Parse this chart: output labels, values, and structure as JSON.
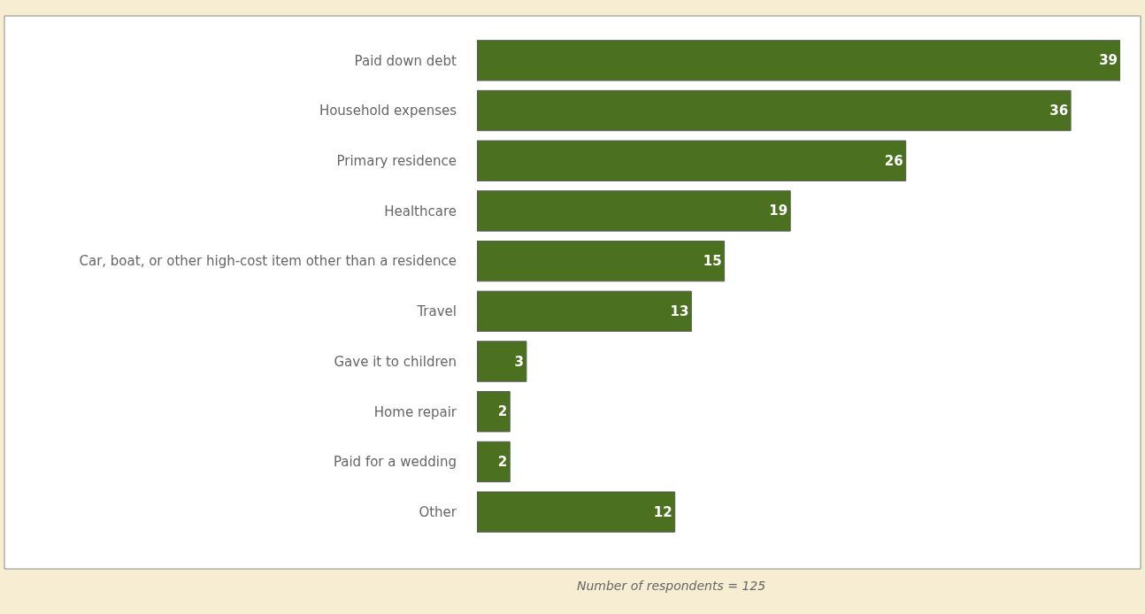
{
  "chart_data": {
    "type": "bar",
    "orientation": "horizontal",
    "categories": [
      "Paid down debt",
      "Household expenses",
      "Primary residence",
      "Healthcare",
      "Car, boat, or other high-cost item other than a residence",
      "Travel",
      "Gave it to children",
      "Home repair",
      "Paid for a wedding",
      "Other"
    ],
    "values": [
      39,
      36,
      26,
      19,
      15,
      13,
      3,
      2,
      2,
      12
    ],
    "color": "#4a7020",
    "data_labels": true,
    "annotations": [
      "Number of respondents = 125"
    ]
  }
}
